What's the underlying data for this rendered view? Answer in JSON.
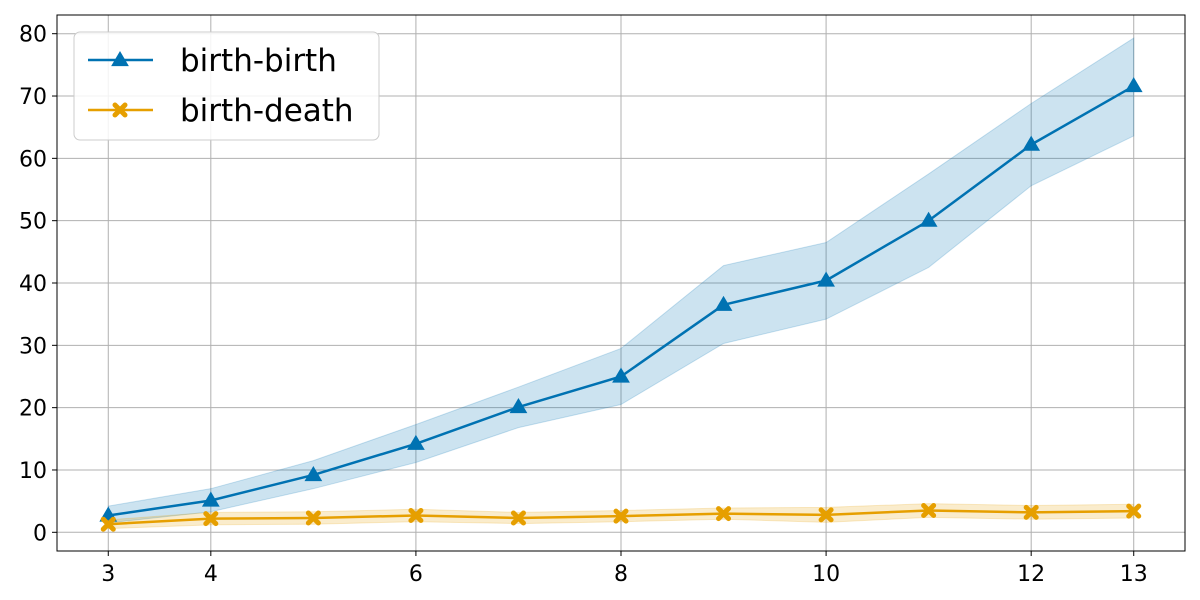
{
  "chart_data": {
    "type": "line",
    "title": "",
    "xlabel": "",
    "ylabel": "",
    "x": [
      3,
      4,
      5,
      6,
      7,
      8,
      9,
      10,
      11,
      12,
      13
    ],
    "xticks": [
      3,
      4,
      6,
      8,
      10,
      12,
      13
    ],
    "xlim": [
      2.5,
      13.5
    ],
    "yticks": [
      0,
      10,
      20,
      30,
      40,
      50,
      60,
      70,
      80
    ],
    "ylim": [
      -3,
      83
    ],
    "grid": true,
    "legend_position": "top-left",
    "series": [
      {
        "name": "birth-birth",
        "color": "#0072b2",
        "marker": "triangle",
        "values": [
          2.7,
          5.1,
          9.2,
          14.2,
          20.1,
          25.0,
          36.5,
          40.4,
          50.0,
          62.2,
          71.6
        ],
        "upper": [
          4.2,
          7.0,
          11.5,
          17.3,
          23.3,
          29.5,
          42.8,
          46.5,
          57.5,
          68.8,
          79.3
        ],
        "lower": [
          1.5,
          3.3,
          7.0,
          11.2,
          16.8,
          20.5,
          30.3,
          34.2,
          42.5,
          55.6,
          63.6
        ]
      },
      {
        "name": "birth-death",
        "color": "#e69f00",
        "marker": "x-filled",
        "values": [
          1.3,
          2.2,
          2.3,
          2.7,
          2.3,
          2.6,
          3.0,
          2.8,
          3.5,
          3.2,
          3.4
        ],
        "upper": [
          2.0,
          3.2,
          3.3,
          3.7,
          3.2,
          3.5,
          3.9,
          4.0,
          4.6,
          4.3,
          4.5
        ],
        "lower": [
          0.6,
          1.2,
          1.3,
          1.7,
          1.4,
          1.7,
          2.1,
          1.6,
          2.4,
          2.1,
          2.3
        ]
      }
    ]
  }
}
